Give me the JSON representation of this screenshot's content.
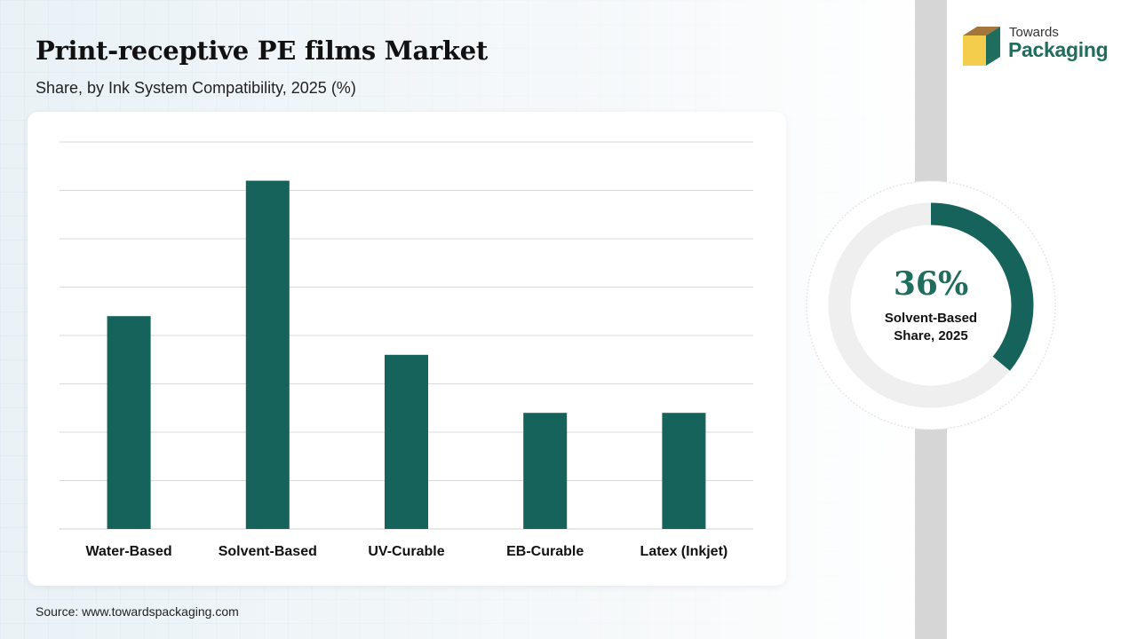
{
  "header": {
    "title": "Print-receptive PE films Market",
    "subtitle": "Share, by Ink System Compatibility, 2025 (%)"
  },
  "source": "Source: www.towardspackaging.com",
  "logo": {
    "line1": "Towards",
    "line2": "Packaging"
  },
  "colors": {
    "bar": "#15635a",
    "accent": "#1f6d5d",
    "donut_track": "#efefef",
    "grid": "#d9d9d9"
  },
  "chart_data": {
    "type": "bar",
    "categories": [
      "Water-Based",
      "Solvent-Based",
      "UV-Curable",
      "EB-Curable",
      "Latex (Inkjet)"
    ],
    "values": [
      22,
      36,
      18,
      12,
      12
    ],
    "title": "Print-receptive PE films Market",
    "subtitle": "Share, by Ink System Compatibility, 2025 (%)",
    "xlabel": "",
    "ylabel": "",
    "ylim": [
      0,
      40
    ],
    "grid": true,
    "y_tick_labels_visible": false
  },
  "highlight": {
    "value_text": "36%",
    "value": 36,
    "label_line1": "Solvent-Based",
    "label_line2": "Share, 2025"
  }
}
